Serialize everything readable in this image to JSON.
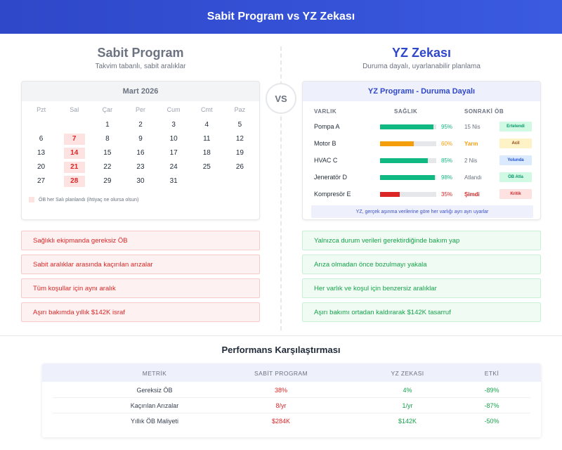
{
  "header": {
    "title": "Sabit Program vs YZ Zekası"
  },
  "left": {
    "title": "Sabit Program",
    "subtitle": "Takvim tabanlı, sabit aralıklar",
    "calendar": {
      "month": "Mart 2026",
      "days_of_week": [
        "Pzt",
        "Sal",
        "Çar",
        "Per",
        "Cum",
        "Cmt",
        "Paz"
      ],
      "weeks": [
        [
          "",
          "",
          "1",
          "2",
          "3",
          "4",
          "5"
        ],
        [
          "6",
          "7",
          "8",
          "9",
          "10",
          "11",
          "12"
        ],
        [
          "13",
          "14",
          "15",
          "16",
          "17",
          "18",
          "19"
        ],
        [
          "20",
          "21",
          "22",
          "23",
          "24",
          "25",
          "26"
        ],
        [
          "27",
          "28",
          "29",
          "30",
          "31",
          "",
          ""
        ]
      ],
      "highlighted": [
        "7",
        "14",
        "21",
        "28"
      ],
      "legend": "ÖB her Salı planlandı (ihtiyaç ne olursa olsun)"
    },
    "points": [
      "Sağlıklı ekipmanda gereksiz ÖB",
      "Sabit aralıklar arasında kaçırılan arızalar",
      "Tüm koşullar için aynı aralık",
      "Aşırı bakımda yıllık $142K israf"
    ]
  },
  "vs": "VS",
  "right": {
    "title": "YZ Zekası",
    "subtitle": "Duruma dayalı, uyarlanabilir planlama",
    "card": {
      "title": "YZ Programı - Duruma Dayalı",
      "headers": {
        "asset": "VARLIK",
        "health": "SAĞLIK",
        "next": "SONRAKİ ÖB"
      },
      "assets": [
        {
          "name": "Pompa A",
          "health": 95,
          "health_label": "95%",
          "next": "15 Nis",
          "badge": "Ertelendi",
          "color": "#10b981",
          "next_color": "#6b7280",
          "badge_bg": "#d1fae5",
          "badge_fg": "#059669"
        },
        {
          "name": "Motor B",
          "health": 60,
          "health_label": "60%",
          "next": "Yarın",
          "badge": "Acil",
          "color": "#f59e0b",
          "next_color": "#f59e0b",
          "badge_bg": "#fef3c7",
          "badge_fg": "#92400e"
        },
        {
          "name": "HVAC C",
          "health": 85,
          "health_label": "85%",
          "next": "2 Nis",
          "badge": "Yolunda",
          "color": "#10b981",
          "next_color": "#6b7280",
          "badge_bg": "#dbeafe",
          "badge_fg": "#1d4ed8"
        },
        {
          "name": "Jeneratör D",
          "health": 98,
          "health_label": "98%",
          "next": "Atlandı",
          "badge": "ÖB Atla",
          "color": "#10b981",
          "next_color": "#6b7280",
          "badge_bg": "#d1fae5",
          "badge_fg": "#059669"
        },
        {
          "name": "Kompresör E",
          "health": 35,
          "health_label": "35%",
          "next": "Şimdi",
          "badge": "Kritik",
          "color": "#dc2626",
          "next_color": "#dc2626",
          "badge_bg": "#fee2e2",
          "badge_fg": "#dc2626"
        }
      ],
      "note": "YZ, gerçek aşınma verilerine göre her varlığı ayrı ayrı uyarlar"
    },
    "points": [
      "Yalnızca durum verileri gerektirdiğinde bakım yap",
      "Arıza olmadan önce bozulmayı yakala",
      "Her varlık ve koşul için benzersiz aralıklar",
      "Aşırı bakımı ortadan kaldırarak $142K tasarruf"
    ]
  },
  "performance": {
    "title": "Performans Karşılaştırması",
    "headers": [
      "METRİK",
      "SABİT PROGRAM",
      "YZ ZEKASI",
      "ETKİ"
    ],
    "rows": [
      [
        "Gereksiz ÖB",
        "38%",
        "4%",
        "-89%"
      ],
      [
        "Kaçırılan Arızalar",
        "8/yr",
        "1/yr",
        "-87%"
      ],
      [
        "Yıllık ÖB Maliyeti",
        "$284K",
        "$142K",
        "-50%"
      ]
    ]
  },
  "colors": {
    "brand": "#3450d6",
    "bad": "#dc2626",
    "good": "#16a34a"
  }
}
